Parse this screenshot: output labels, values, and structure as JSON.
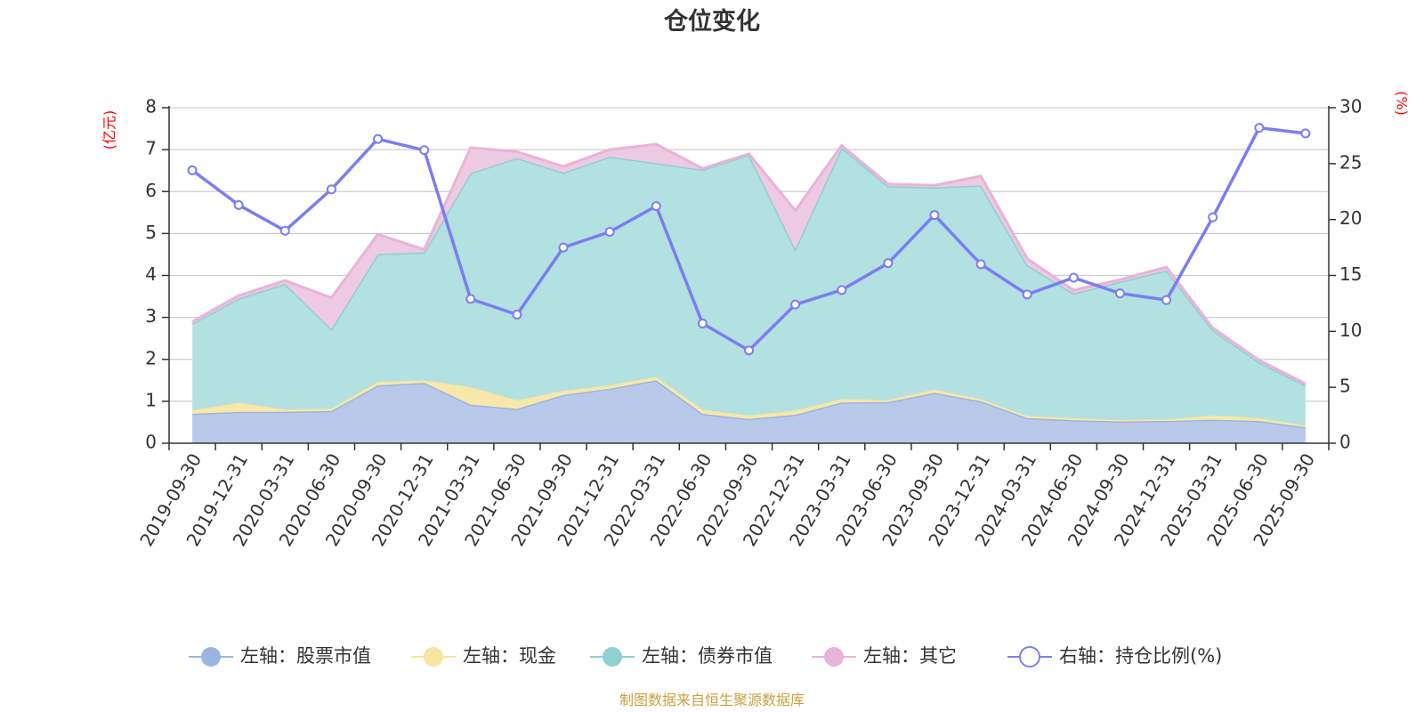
{
  "chart_data": {
    "type": "area",
    "title": "仓位变化",
    "source_text": "制图数据来自恒生聚源数据库",
    "left_axis": {
      "unit_label": "(亿元)",
      "ylim": [
        0,
        8
      ],
      "ticks": [
        "0",
        "1",
        "2",
        "3",
        "4",
        "5",
        "6",
        "7",
        "8"
      ]
    },
    "right_axis": {
      "unit_label": "(%)",
      "ylim": [
        0,
        30
      ],
      "ticks": [
        "0",
        "5",
        "10",
        "15",
        "20",
        "25",
        "30"
      ]
    },
    "categories": [
      "2019-09-30",
      "2019-12-31",
      "2020-03-31",
      "2020-06-30",
      "2020-09-30",
      "2020-12-31",
      "2021-03-31",
      "2021-06-30",
      "2021-09-30",
      "2021-12-31",
      "2022-03-31",
      "2022-06-30",
      "2022-09-30",
      "2022-12-31",
      "2023-03-31",
      "2023-06-30",
      "2023-09-30",
      "2023-12-31",
      "2024-03-31",
      "2024-06-30",
      "2024-09-30",
      "2024-12-31",
      "2025-03-31",
      "2025-06-30",
      "2025-09-30"
    ],
    "series": [
      {
        "name": "股票市值",
        "legend": "左轴：股票市值",
        "axis": "left",
        "type": "stacked-area",
        "color": "#9bb5e0",
        "fill": "#b9c9ea",
        "values": [
          0.7,
          0.75,
          0.75,
          0.77,
          1.38,
          1.44,
          0.92,
          0.82,
          1.15,
          1.3,
          1.5,
          0.7,
          0.58,
          0.68,
          0.97,
          0.98,
          1.2,
          1.0,
          0.6,
          0.55,
          0.52,
          0.53,
          0.56,
          0.53,
          0.38
        ]
      },
      {
        "name": "现金",
        "legend": "左轴：现金",
        "axis": "left",
        "type": "stacked-area",
        "color": "#f7e6a0",
        "fill": "#f8e7aa",
        "values": [
          0.08,
          0.22,
          0.05,
          0.05,
          0.08,
          0.06,
          0.42,
          0.2,
          0.1,
          0.08,
          0.08,
          0.1,
          0.08,
          0.1,
          0.08,
          0.05,
          0.08,
          0.05,
          0.05,
          0.05,
          0.03,
          0.04,
          0.1,
          0.07,
          0.04
        ]
      },
      {
        "name": "债券市值",
        "legend": "左轴：债券市值",
        "axis": "left",
        "type": "stacked-area",
        "color": "#8fd0d0",
        "fill": "#b3e0e0",
        "values": [
          2.07,
          2.48,
          3.0,
          1.9,
          3.05,
          3.05,
          5.1,
          5.78,
          5.2,
          5.45,
          5.1,
          5.72,
          6.22,
          3.85,
          6.0,
          5.1,
          4.82,
          5.1,
          3.6,
          2.97,
          3.3,
          3.55,
          2.04,
          1.33,
          0.96
        ]
      },
      {
        "name": "其它",
        "legend": "左轴：其它",
        "axis": "left",
        "type": "stacked-area",
        "color": "#e9b3d8",
        "fill": "#edc9e2",
        "values": [
          0.05,
          0.07,
          0.08,
          0.75,
          0.47,
          0.07,
          0.61,
          0.15,
          0.15,
          0.17,
          0.45,
          0.03,
          0.02,
          0.92,
          0.05,
          0.05,
          0.05,
          0.22,
          0.15,
          0.08,
          0.05,
          0.08,
          0.05,
          0.05,
          0.04
        ]
      },
      {
        "name": "持仓比例(%)",
        "legend": "右轴：持仓比例(%)",
        "axis": "right",
        "type": "line",
        "color": "#7b7ef0",
        "values": [
          24.4,
          21.3,
          19.0,
          22.7,
          27.2,
          26.2,
          12.9,
          11.5,
          17.5,
          18.9,
          21.2,
          10.7,
          8.3,
          12.4,
          13.7,
          16.1,
          20.4,
          16.0,
          13.3,
          14.8,
          13.4,
          12.8,
          20.2,
          28.2,
          27.7
        ]
      }
    ]
  }
}
